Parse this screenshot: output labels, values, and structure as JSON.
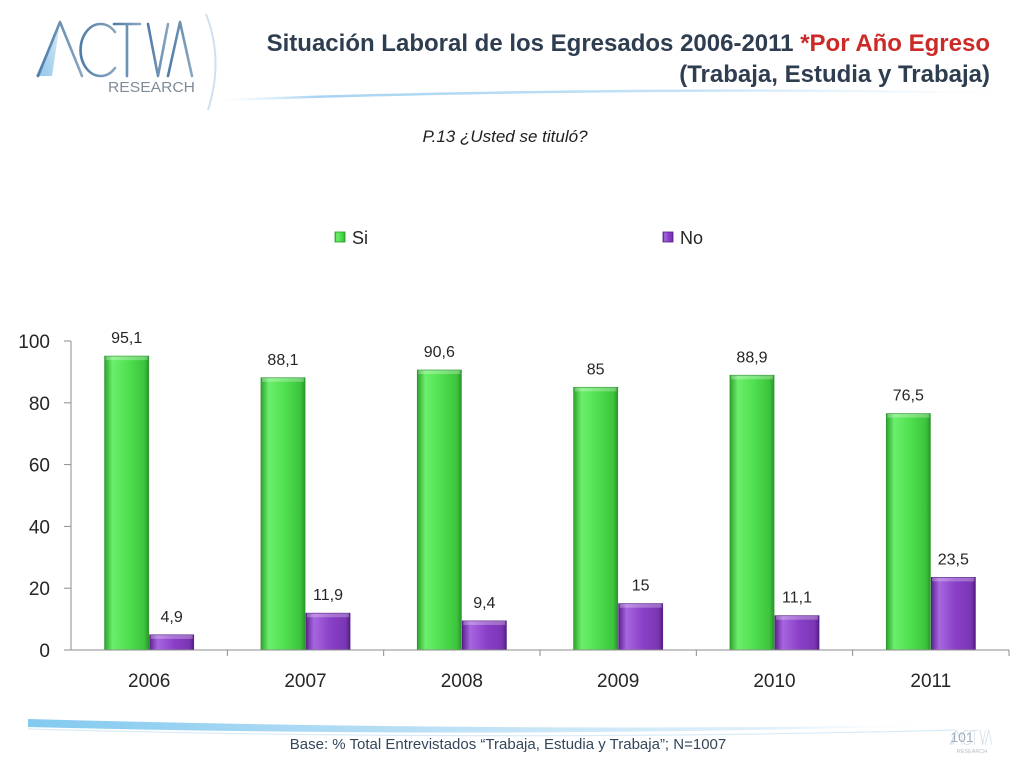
{
  "logo": {
    "name": "ACTIVA",
    "tagline": "RESEARCH"
  },
  "header": {
    "title": "Situación Laboral de los Egresados 2006-2011",
    "title_highlight": "*Por Año Egreso",
    "subtitle": "(Trabaja, Estudia y Trabaja)"
  },
  "footer": {
    "base_note": "Base: % Total Entrevistados “Trabaja, Estudia y Trabaja”; N=1007",
    "page_number": "101"
  },
  "colors": {
    "title": "#2e3d50",
    "title_highlight": "#cc2a27",
    "footer_text": "#34465a"
  },
  "chart_data": {
    "type": "bar",
    "title": "P.13 ¿Usted se tituló?",
    "xlabel": "",
    "ylabel": "",
    "categories": [
      "2006",
      "2007",
      "2008",
      "2009",
      "2010",
      "2011"
    ],
    "series": [
      {
        "name": "Si",
        "values": [
          95.1,
          88.1,
          90.6,
          85,
          88.9,
          76.5
        ],
        "labels": [
          "95,1",
          "88,1",
          "90,6",
          "85",
          "88,9",
          "76,5"
        ],
        "color": "#4fdf4f"
      },
      {
        "name": "No",
        "values": [
          4.9,
          11.9,
          9.4,
          15,
          11.1,
          23.5
        ],
        "labels": [
          "4,9",
          "11,9",
          "9,4",
          "15",
          "11,1",
          "23,5"
        ],
        "color": "#8a40c8"
      }
    ],
    "ylim": [
      0,
      100
    ],
    "yticks": [
      0,
      20,
      40,
      60,
      80,
      100
    ],
    "legend": "top",
    "grid": false
  }
}
